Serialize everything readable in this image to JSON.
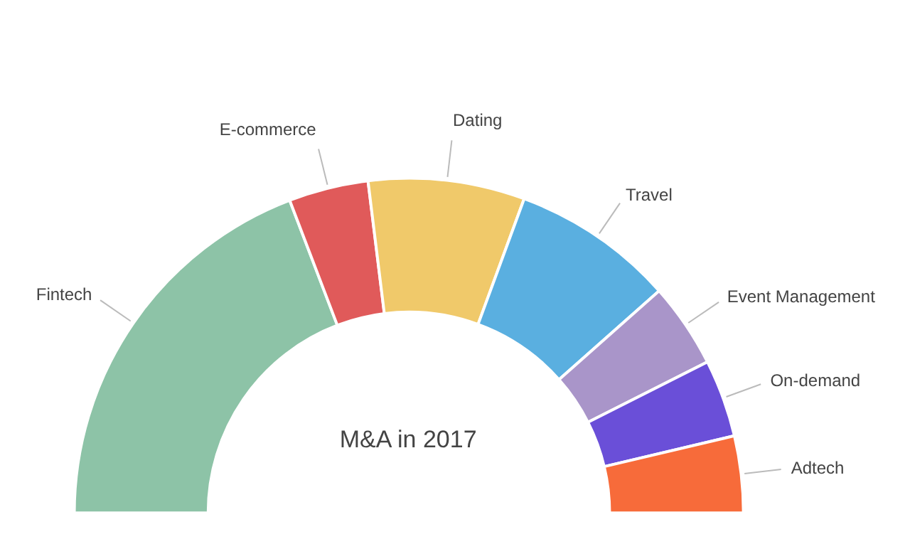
{
  "chart_data": {
    "type": "donut",
    "title": "M&A in 2017",
    "categories": [
      "Fintech",
      "E-commerce",
      "Dating",
      "Travel",
      "Event Management",
      "On-demand",
      "Adtech"
    ],
    "values": [
      38.4,
      7.7,
      15.1,
      15.7,
      8.2,
      7.5,
      7.4
    ],
    "colors": [
      "#8dc3a7",
      "#e05a5a",
      "#f0c96a",
      "#5aafe0",
      "#a995c9",
      "#6a4fd8",
      "#f76b3a"
    ]
  }
}
